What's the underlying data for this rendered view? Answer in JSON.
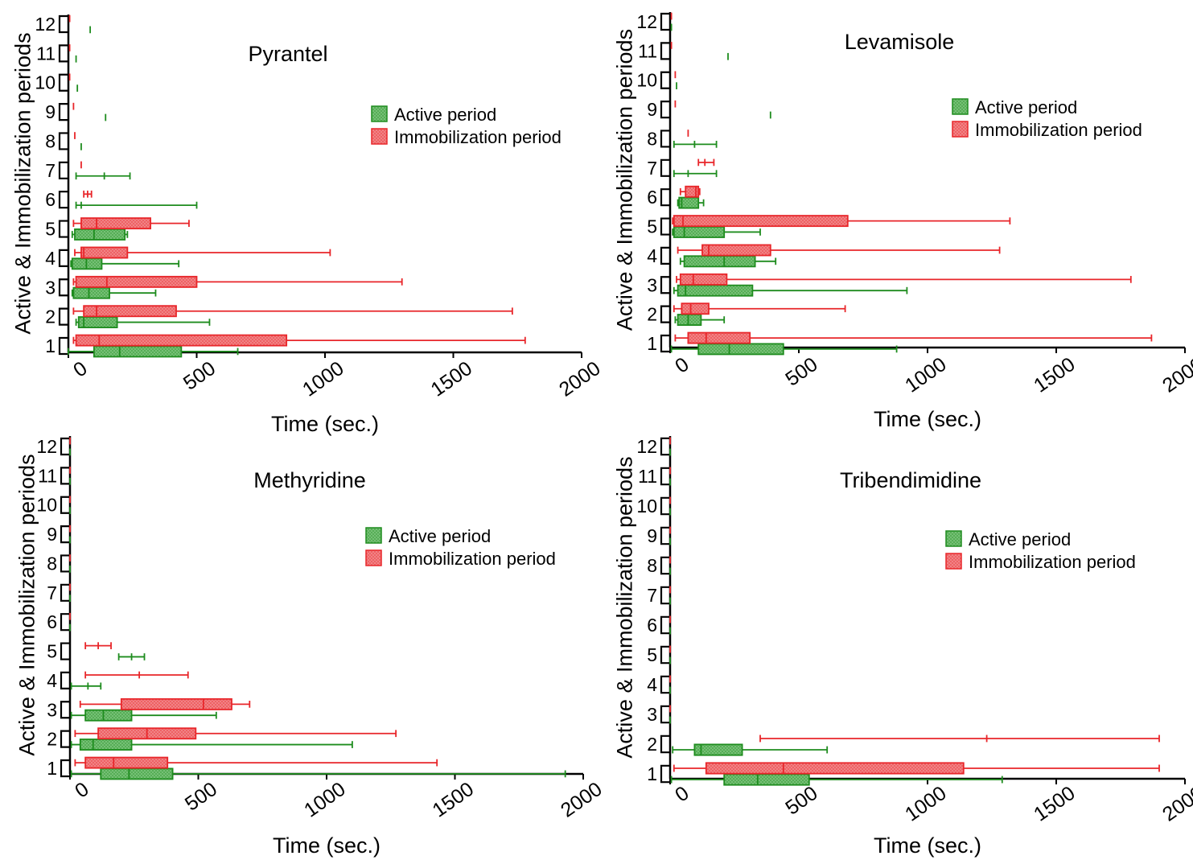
{
  "colors": {
    "active": "#1e8c1e",
    "active_fill": "#7cc47c",
    "immobilization": "#e8262a",
    "immobilization_fill": "#f28a8c"
  },
  "chart_data": [
    {
      "type": "boxplot",
      "title": "Pyrantel",
      "xlabel": "Time (sec.)",
      "ylabel": "Active & Immobilization periods",
      "xlim": [
        0,
        2000
      ],
      "xticks": [
        "0",
        "500",
        "1000",
        "1500",
        "2000"
      ],
      "periods": [
        "1",
        "2",
        "3",
        "4",
        "5",
        "6",
        "7",
        "8",
        "9",
        "10",
        "11",
        "12"
      ],
      "legend": {
        "position": "top-right",
        "entries": [
          "Active period",
          "Immobilization period"
        ]
      },
      "series": [
        {
          "name": "Active period",
          "boxes": [
            {
              "period": 1,
              "min": 0,
              "q1": 100,
              "median": 200,
              "q3": 440,
              "max": 660
            },
            {
              "period": 2,
              "min": 30,
              "q1": 40,
              "median": 60,
              "q3": 190,
              "max": 550
            },
            {
              "period": 3,
              "min": 15,
              "q1": 20,
              "median": 80,
              "q3": 160,
              "max": 340
            },
            {
              "period": 4,
              "min": 10,
              "q1": 15,
              "median": 70,
              "q3": 130,
              "max": 430
            },
            {
              "period": 5,
              "min": 15,
              "q1": 25,
              "median": 100,
              "q3": 220,
              "max": 230
            },
            {
              "period": 6,
              "min": 30,
              "median": 50,
              "max": 500
            },
            {
              "period": 7,
              "min": 30,
              "median": 140,
              "max": 240
            },
            {
              "period": 8,
              "median": 50
            },
            {
              "period": 9,
              "median": 145
            },
            {
              "period": 10,
              "median": 35
            },
            {
              "period": 11,
              "median": 30
            },
            {
              "period": 12,
              "median": 85
            }
          ]
        },
        {
          "name": "Immobilization period",
          "boxes": [
            {
              "period": 1,
              "min": 20,
              "q1": 30,
              "median": 120,
              "q3": 850,
              "max": 1780
            },
            {
              "period": 2,
              "min": 20,
              "q1": 60,
              "median": 110,
              "q3": 420,
              "max": 1730
            },
            {
              "period": 3,
              "min": 20,
              "q1": 30,
              "median": 150,
              "q3": 500,
              "max": 1300
            },
            {
              "period": 4,
              "min": 25,
              "q1": 50,
              "median": 60,
              "q3": 230,
              "max": 1020
            },
            {
              "period": 5,
              "min": 20,
              "q1": 50,
              "median": 110,
              "q3": 320,
              "max": 470
            },
            {
              "period": 6,
              "min": 60,
              "median": 75,
              "max": 90
            },
            {
              "period": 7,
              "median": 50
            },
            {
              "period": 8,
              "median": 25
            },
            {
              "period": 9,
              "median": 20
            },
            {
              "period": 10,
              "median": 5
            },
            {
              "period": 11,
              "median": 5
            },
            {
              "period": 12,
              "median": 5
            }
          ]
        }
      ]
    },
    {
      "type": "boxplot",
      "title": "Levamisole",
      "xlabel": "Time (sec.)",
      "ylabel": "Active & Immobilization periods",
      "xlim": [
        0,
        2000
      ],
      "xticks": [
        "0",
        "500",
        "1000",
        "1500",
        "2000"
      ],
      "periods": [
        "1",
        "2",
        "3",
        "4",
        "5",
        "6",
        "7",
        "8",
        "9",
        "10",
        "11",
        "12"
      ],
      "legend": {
        "position": "top-right",
        "entries": [
          "Active period",
          "Immobilization period"
        ]
      },
      "series": [
        {
          "name": "Active period",
          "boxes": [
            {
              "period": 1,
              "min": 5,
              "q1": 110,
              "median": 230,
              "q3": 440,
              "max": 880
            },
            {
              "period": 2,
              "min": 20,
              "q1": 30,
              "median": 70,
              "q3": 120,
              "max": 210
            },
            {
              "period": 3,
              "min": 15,
              "q1": 30,
              "median": 60,
              "q3": 320,
              "max": 920
            },
            {
              "period": 4,
              "min": 40,
              "q1": 55,
              "median": 210,
              "q3": 330,
              "max": 410
            },
            {
              "period": 5,
              "min": 10,
              "q1": 15,
              "median": 55,
              "q3": 210,
              "max": 350
            },
            {
              "period": 6,
              "min": 30,
              "q1": 35,
              "median": 45,
              "q3": 110,
              "max": 130
            },
            {
              "period": 7,
              "min": 15,
              "median": 70,
              "max": 180
            },
            {
              "period": 8,
              "min": 15,
              "median": 95,
              "max": 180
            },
            {
              "period": 9,
              "median": 390
            },
            {
              "period": 10,
              "median": 25
            },
            {
              "period": 11,
              "median": 225
            },
            {
              "period": 12,
              "median": 5
            }
          ]
        },
        {
          "name": "Immobilization period",
          "boxes": [
            {
              "period": 1,
              "min": 20,
              "q1": 70,
              "median": 140,
              "q3": 310,
              "max": 1870
            },
            {
              "period": 2,
              "min": 15,
              "q1": 45,
              "median": 80,
              "q3": 150,
              "max": 680
            },
            {
              "period": 3,
              "min": 25,
              "q1": 40,
              "median": 90,
              "q3": 220,
              "max": 1790
            },
            {
              "period": 4,
              "min": 30,
              "q1": 125,
              "median": 150,
              "q3": 390,
              "max": 1280
            },
            {
              "period": 5,
              "min": 10,
              "q1": 15,
              "median": 50,
              "q3": 690,
              "max": 1320
            },
            {
              "period": 6,
              "min": 40,
              "q1": 60,
              "median": 100,
              "q3": 110,
              "max": 115
            },
            {
              "period": 7,
              "min": 110,
              "median": 135,
              "max": 170
            },
            {
              "period": 8,
              "median": 70
            },
            {
              "period": 9,
              "median": 20
            },
            {
              "period": 10,
              "median": 20
            },
            {
              "period": 11,
              "median": 5
            },
            {
              "period": 12,
              "median": 5
            }
          ]
        }
      ]
    },
    {
      "type": "boxplot",
      "title": "Methyridine",
      "xlabel": "Time (sec.)",
      "ylabel": "Active & Immobilization periods",
      "xlim": [
        0,
        2000
      ],
      "xticks": [
        "0",
        "500",
        "1000",
        "1500",
        "2000"
      ],
      "periods": [
        "1",
        "2",
        "3",
        "4",
        "5",
        "6",
        "7",
        "8",
        "9",
        "10",
        "11",
        "12"
      ],
      "legend": {
        "position": "top-right",
        "entries": [
          "Active period",
          "Immobilization period"
        ]
      },
      "series": [
        {
          "name": "Active period",
          "boxes": [
            {
              "period": 1,
              "min": 5,
              "q1": 120,
              "median": 230,
              "q3": 400,
              "max": 1930
            },
            {
              "period": 2,
              "min": 5,
              "q1": 40,
              "median": 90,
              "q3": 240,
              "max": 1100
            },
            {
              "period": 3,
              "min": 5,
              "q1": 60,
              "median": 130,
              "q3": 240,
              "max": 570
            },
            {
              "period": 4,
              "min": 5,
              "median": 70,
              "max": 120
            },
            {
              "period": 5,
              "min": 190,
              "median": 240,
              "max": 290
            },
            {
              "period": 6,
              "median": 0
            },
            {
              "period": 7,
              "median": 0
            },
            {
              "period": 8,
              "median": 0
            },
            {
              "period": 9,
              "median": 0
            },
            {
              "period": 10,
              "median": 0
            },
            {
              "period": 11,
              "median": 0
            },
            {
              "period": 12,
              "median": 0
            }
          ]
        },
        {
          "name": "Immobilization period",
          "boxes": [
            {
              "period": 1,
              "min": 20,
              "q1": 60,
              "median": 170,
              "q3": 380,
              "max": 1430
            },
            {
              "period": 2,
              "min": 20,
              "q1": 110,
              "median": 300,
              "q3": 490,
              "max": 1270
            },
            {
              "period": 3,
              "min": 40,
              "q1": 200,
              "median": 520,
              "q3": 630,
              "max": 700
            },
            {
              "period": 4,
              "min": 60,
              "median": 270,
              "max": 460
            },
            {
              "period": 5,
              "min": 60,
              "median": 110,
              "max": 160
            },
            {
              "period": 6,
              "median": 0
            },
            {
              "period": 7,
              "median": 0
            },
            {
              "period": 8,
              "median": 0
            },
            {
              "period": 9,
              "median": 0
            },
            {
              "period": 10,
              "median": 0
            },
            {
              "period": 11,
              "median": 0
            },
            {
              "period": 12,
              "median": 0
            }
          ]
        }
      ]
    },
    {
      "type": "boxplot",
      "title": "Tribendimidine",
      "xlabel": "Time (sec.)",
      "ylabel": "Active & Immobilization periods",
      "xlim": [
        0,
        2000
      ],
      "xticks": [
        "0",
        "500",
        "1000",
        "1500",
        "2000"
      ],
      "periods": [
        "1",
        "2",
        "3",
        "4",
        "5",
        "6",
        "7",
        "8",
        "9",
        "10",
        "11",
        "12"
      ],
      "legend": {
        "position": "top-right",
        "entries": [
          "Active period",
          "Immobilization period"
        ]
      },
      "series": [
        {
          "name": "Active period",
          "boxes": [
            {
              "period": 1,
              "min": 5,
              "q1": 210,
              "median": 340,
              "q3": 540,
              "max": 1290
            },
            {
              "period": 2,
              "min": 10,
              "q1": 95,
              "median": 120,
              "q3": 280,
              "max": 610
            },
            {
              "period": 3,
              "median": 0
            },
            {
              "period": 4,
              "median": 0
            },
            {
              "period": 5,
              "median": 0
            },
            {
              "period": 6,
              "median": 0
            },
            {
              "period": 7,
              "median": 0
            },
            {
              "period": 8,
              "median": 0
            },
            {
              "period": 9,
              "median": 0
            },
            {
              "period": 10,
              "median": 0
            },
            {
              "period": 11,
              "median": 0
            },
            {
              "period": 12,
              "median": 0
            }
          ]
        },
        {
          "name": "Immobilization period",
          "boxes": [
            {
              "period": 1,
              "min": 15,
              "q1": 140,
              "median": 440,
              "q3": 1140,
              "max": 1900
            },
            {
              "period": 2,
              "min": 350,
              "median": 1230,
              "max": 1900
            },
            {
              "period": 3,
              "median": 0
            },
            {
              "period": 4,
              "median": 0
            },
            {
              "period": 5,
              "median": 0
            },
            {
              "period": 6,
              "median": 0
            },
            {
              "period": 7,
              "median": 0
            },
            {
              "period": 8,
              "median": 0
            },
            {
              "period": 9,
              "median": 0
            },
            {
              "period": 10,
              "median": 0
            },
            {
              "period": 11,
              "median": 0
            },
            {
              "period": 12,
              "median": 0
            }
          ]
        }
      ]
    }
  ]
}
